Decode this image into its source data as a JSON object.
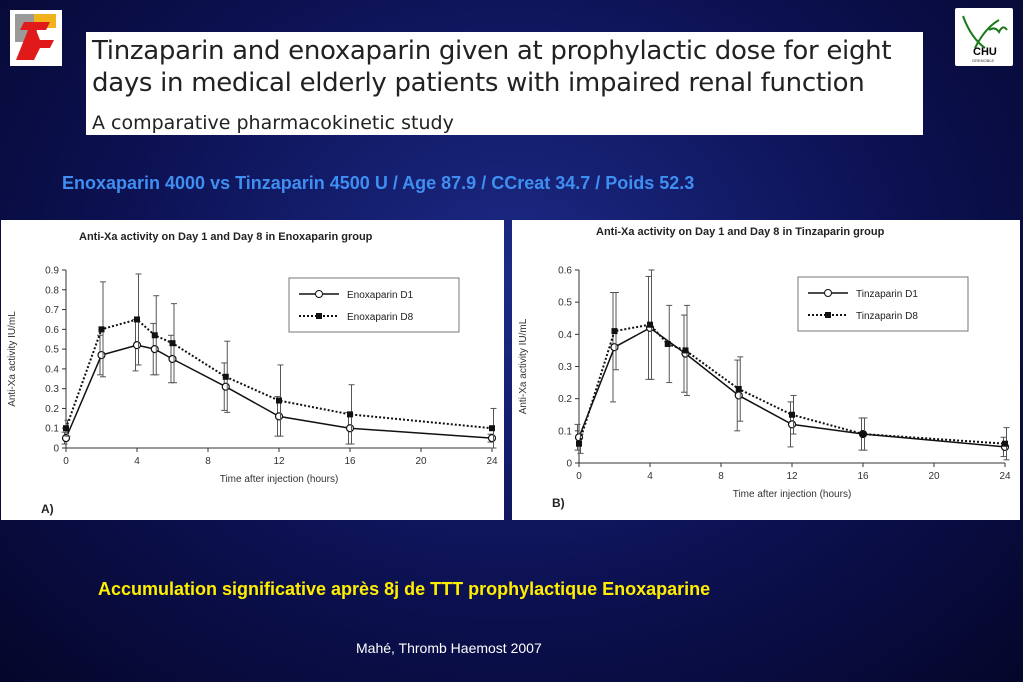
{
  "slide": {
    "paper_title_line1": "Tinzaparin and enoxaparin given at prophylactic dose for eight",
    "paper_title_line2": "days in medical elderly patients with impaired renal function",
    "paper_subtitle": "A comparative pharmacokinetic study",
    "headline": "Enoxaparin 4000 vs Tinzaparin 4500 U / Age 87.9 / CCreat 34.7 / Poids 52.3",
    "conclusion": "Accumulation significative après 8j de TTT prophylactique Enoxaparine",
    "reference": "Mahé, Thromb Haemost 2007",
    "logo_right_text": "CHU",
    "logo_right_subtext": "GRENOBLE"
  },
  "chart_data": [
    {
      "type": "line",
      "panel_label": "A)",
      "title": "Anti-Xa activity on Day 1 and Day 8 in Enoxaparin group",
      "xlabel": "Time after injection (hours)",
      "ylabel": "Anti-Xa activity IU/mL",
      "xlim": [
        0,
        24
      ],
      "ylim": [
        0,
        0.9
      ],
      "xticks": [
        "0",
        "4",
        "8",
        "12",
        "16",
        "20",
        "24"
      ],
      "yticks": [
        "0",
        "0.1",
        "0.2",
        "0.3",
        "0.4",
        "0.5",
        "0.6",
        "0.7",
        "0.8",
        "0.9"
      ],
      "legend_position": "top-right",
      "series": [
        {
          "name": "Enoxaparin D1",
          "style": "solid-open-circle",
          "x": [
            0,
            2,
            4,
            5,
            6,
            9,
            12,
            16,
            24
          ],
          "y": [
            0.05,
            0.47,
            0.52,
            0.5,
            0.45,
            0.31,
            0.16,
            0.1,
            0.05
          ],
          "error": [
            0.03,
            0.1,
            0.13,
            0.13,
            0.12,
            0.12,
            0.1,
            0.08,
            0.02
          ]
        },
        {
          "name": "Enoxaparin D8",
          "style": "dotted-filled-square",
          "x": [
            0,
            2,
            4,
            5,
            6,
            9,
            12,
            16,
            24
          ],
          "y": [
            0.1,
            0.6,
            0.65,
            0.57,
            0.53,
            0.36,
            0.24,
            0.17,
            0.1
          ],
          "error": [
            0.04,
            0.24,
            0.23,
            0.2,
            0.2,
            0.18,
            0.18,
            0.15,
            0.1
          ]
        }
      ]
    },
    {
      "type": "line",
      "panel_label": "B)",
      "title": "Anti-Xa activity on Day 1 and Day 8 in Tinzaparin group",
      "xlabel": "Time after injection (hours)",
      "ylabel": "Anti-Xa activity IU/mL",
      "xlim": [
        0,
        24
      ],
      "ylim": [
        0,
        0.6
      ],
      "xticks": [
        "0",
        "4",
        "8",
        "12",
        "16",
        "20",
        "24"
      ],
      "yticks": [
        "0",
        "0.1",
        "0.2",
        "0.3",
        "0.4",
        "0.5",
        "0.6"
      ],
      "legend_position": "top-right",
      "series": [
        {
          "name": "Tinzaparin D1",
          "style": "solid-open-circle",
          "x": [
            0,
            2,
            4,
            6,
            9,
            12,
            16,
            24
          ],
          "y": [
            0.08,
            0.36,
            0.42,
            0.34,
            0.21,
            0.12,
            0.09,
            0.05
          ],
          "error": [
            0.04,
            0.17,
            0.16,
            0.12,
            0.11,
            0.07,
            0.05,
            0.03
          ]
        },
        {
          "name": "Tinzaparin D8",
          "style": "dotted-filled-square",
          "x": [
            0,
            2,
            4,
            5,
            6,
            9,
            12,
            16,
            24
          ],
          "y": [
            0.06,
            0.41,
            0.43,
            0.37,
            0.35,
            0.23,
            0.15,
            0.09,
            0.06
          ],
          "error": [
            0.03,
            0.12,
            0.17,
            0.12,
            0.14,
            0.1,
            0.06,
            0.05,
            0.05
          ]
        }
      ]
    }
  ]
}
